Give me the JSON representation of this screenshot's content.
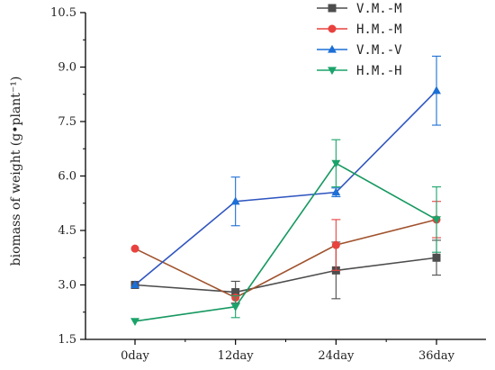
{
  "chart_data": {
    "type": "line",
    "categories": [
      "0day",
      "12day",
      "24day",
      "36day"
    ],
    "ylabel": "biomass of weight (g•plant⁻¹)",
    "ylim": [
      1.5,
      10.5
    ],
    "yticks": [
      "1.5",
      "3.0",
      "4.5",
      "6.0",
      "7.5",
      "9.0",
      "10.5"
    ],
    "ytick_values": [
      1.5,
      3.0,
      4.5,
      6.0,
      7.5,
      9.0,
      10.5
    ],
    "legend_position": "top-right",
    "series": [
      {
        "name": "V.M.-M",
        "marker": "square",
        "color": "#4d4d4d",
        "line_color": "#4d4d4d",
        "values": [
          3.0,
          2.8,
          3.4,
          3.75
        ],
        "errors": [
          0,
          0.3,
          0.78,
          0.48
        ]
      },
      {
        "name": "H.M.-M",
        "marker": "circle",
        "color": "#e8423f",
        "line_color": "#a0522d",
        "values": [
          4.0,
          2.65,
          4.1,
          4.8
        ],
        "errors": [
          0,
          0,
          0.7,
          0.5
        ]
      },
      {
        "name": "V.M.-V",
        "marker": "triangle-up",
        "color": "#1c6fd6",
        "line_color": "#2f55c0",
        "values": [
          3.0,
          5.3,
          5.55,
          8.35
        ],
        "errors": [
          0,
          0.67,
          0.12,
          0.95
        ]
      },
      {
        "name": "H.M.-H",
        "marker": "triangle-down",
        "color": "#1aa36a",
        "line_color": "#159860",
        "values": [
          2.0,
          2.4,
          6.35,
          4.8
        ],
        "errors": [
          0,
          0.3,
          0.65,
          0.9
        ]
      }
    ]
  }
}
